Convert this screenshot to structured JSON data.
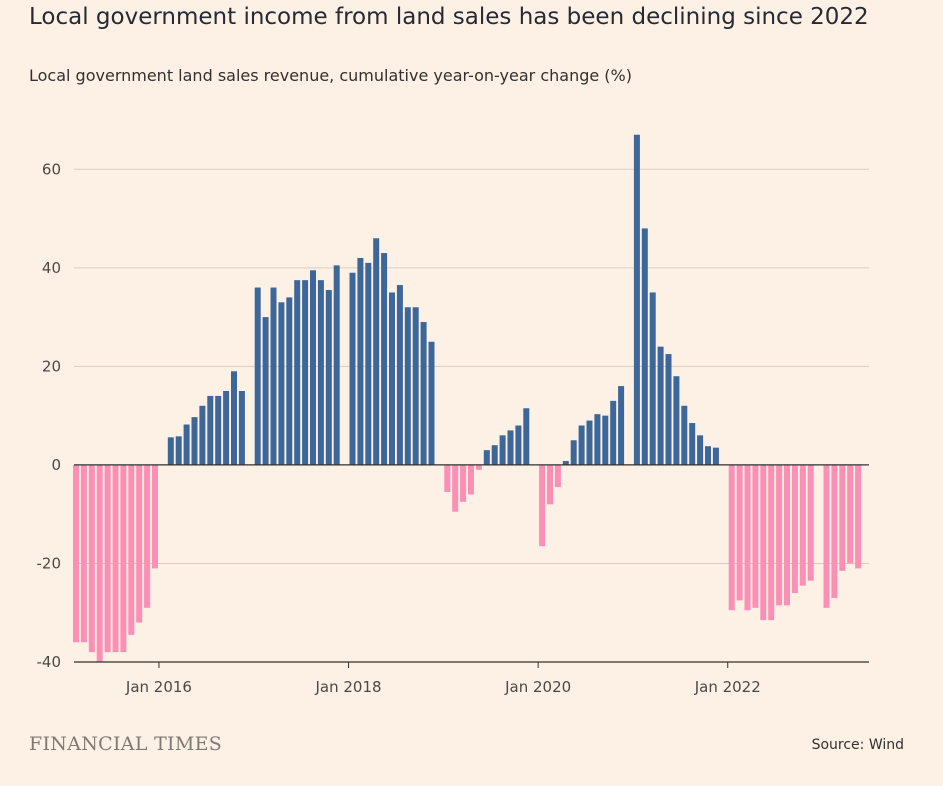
{
  "header": {
    "title": "Local government income from land sales has been declining since 2022",
    "subtitle": "Local government land sales revenue, cumulative year-on-year change (%)"
  },
  "footer": {
    "brand": "FINANCIAL TIMES",
    "source": "Source: Wind"
  },
  "colors": {
    "positive": "#3e6799",
    "negative": "#fb8fb5",
    "gridline": "#d9cbbf",
    "axis": "#33302e",
    "background": "#fdf1e6"
  },
  "chart_data": {
    "type": "bar",
    "x_start_month": "2015-02",
    "ylim": [
      -40,
      70
    ],
    "yticks": [
      -40,
      -20,
      0,
      20,
      40,
      60
    ],
    "ytick_labels": [
      "-40",
      "-20",
      "0",
      "20",
      "40",
      "60"
    ],
    "x_tick_labels": [
      "Jan 2016",
      "Jan 2018",
      "Jan 2020",
      "Jan 2022"
    ],
    "x_tick_months": [
      "2016-01",
      "2018-01",
      "2020-01",
      "2022-01"
    ],
    "grid": true,
    "values": [
      -36,
      -36,
      -38,
      -40,
      -38,
      -38,
      -38,
      -34.5,
      -32,
      -29,
      -21,
      null,
      5.6,
      5.8,
      8.2,
      9.7,
      12,
      14,
      14,
      15,
      19,
      15,
      null,
      36,
      30,
      36,
      33,
      34,
      37.5,
      37.5,
      39.5,
      37.5,
      35.5,
      40.5,
      null,
      39,
      42,
      41,
      46,
      43,
      35,
      36.5,
      32,
      32,
      29,
      25,
      null,
      -5.5,
      -9.5,
      -7.5,
      -6,
      -1,
      3,
      4,
      6,
      7,
      8,
      11.5,
      null,
      -16.5,
      -8,
      -4.5,
      0.8,
      5,
      8,
      9,
      10.3,
      10,
      13,
      16,
      null,
      67,
      48,
      35,
      24,
      22.5,
      18,
      12,
      8.5,
      6,
      3.8,
      3.5,
      null,
      -29.5,
      -27.5,
      -29.5,
      -29,
      -31.5,
      -31.5,
      -28.5,
      -28.5,
      -26,
      -24.5,
      -23.5,
      null,
      -29,
      -27,
      -21.5,
      -20,
      -21
    ]
  }
}
